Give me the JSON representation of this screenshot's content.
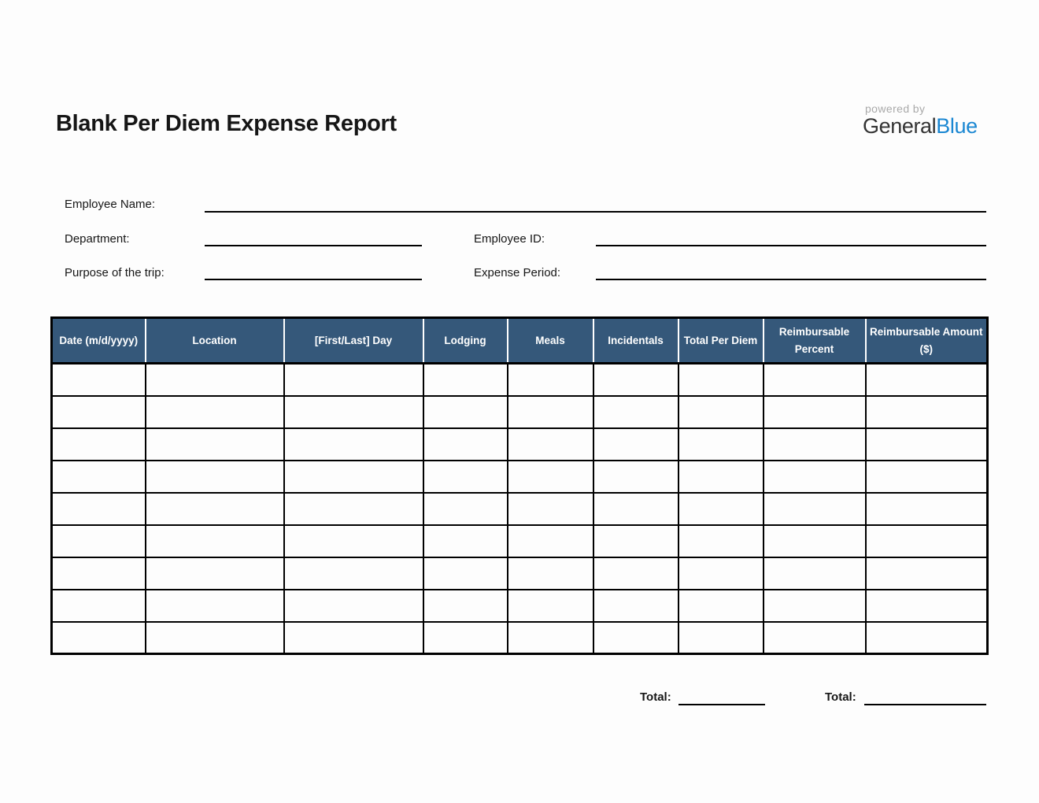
{
  "title": "Blank Per Diem Expense Report",
  "logo": {
    "powered_by": "powered by",
    "brand_primary": "General",
    "brand_accent": "Blue"
  },
  "form": {
    "employee_name": {
      "label": "Employee Name:",
      "value": ""
    },
    "department": {
      "label": "Department:",
      "value": ""
    },
    "employee_id": {
      "label": "Employee ID:",
      "value": ""
    },
    "purpose": {
      "label": "Purpose of the trip:",
      "value": ""
    },
    "expense_period": {
      "label": "Expense Period:",
      "value": ""
    }
  },
  "table": {
    "columns": [
      "Date (m/d/yyyy)",
      "Location",
      "[First/Last] Day",
      "Lodging",
      "Meals",
      "Incidentals",
      "Total Per Diem",
      "Reimbursable Percent",
      "Reimbursable Amount ($)"
    ],
    "row_count": 9,
    "empty_cell_value": ""
  },
  "totals": {
    "per_diem": {
      "label": "Total:",
      "value": ""
    },
    "reimbursable": {
      "label": "Total:",
      "value": ""
    }
  },
  "colors": {
    "table_header_bg": "#35587a",
    "table_header_text": "#ffffff",
    "grid_border": "#000000",
    "brand_blue": "#1a87d2",
    "powered_by_gray": "#a9a9a9"
  }
}
